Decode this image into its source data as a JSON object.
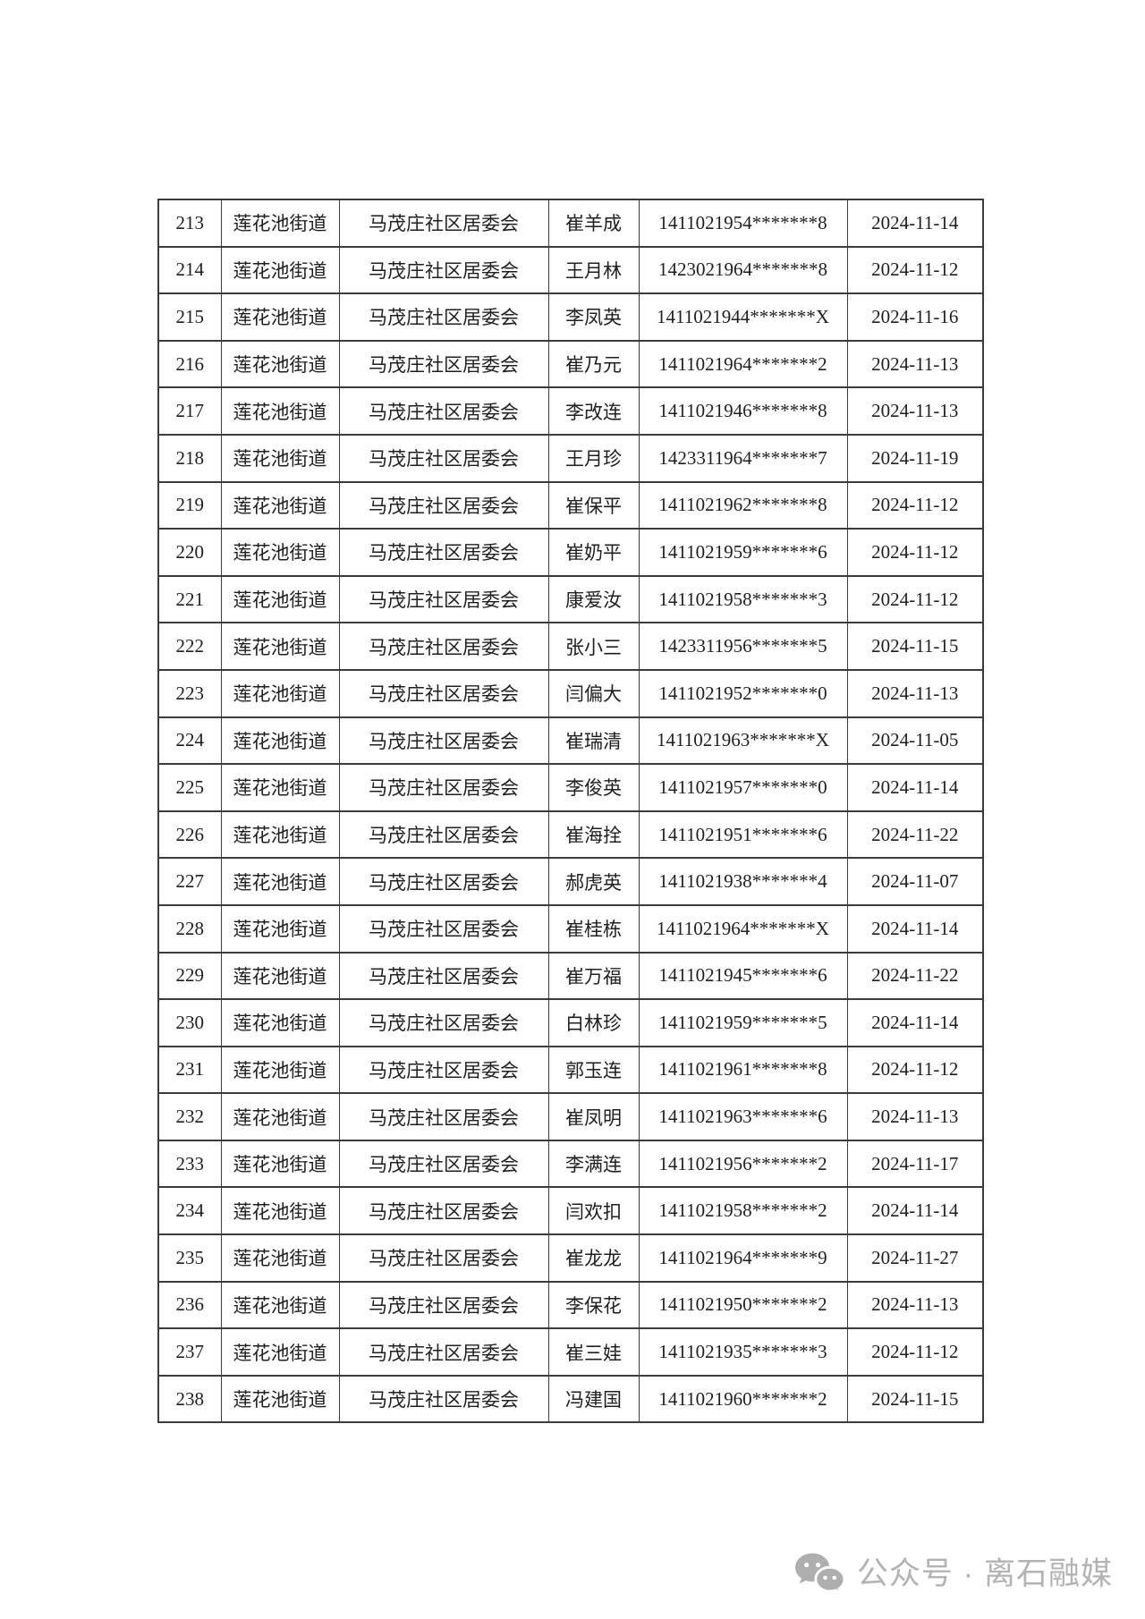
{
  "table": {
    "border_color": "#3c3c3c",
    "columns": [
      "no",
      "street",
      "community",
      "name",
      "id",
      "date"
    ],
    "rows": [
      {
        "no": "213",
        "street": "莲花池街道",
        "community": "马茂庄社区居委会",
        "name": "崔羊成",
        "id": "1411021954*******8",
        "date": "2024-11-14"
      },
      {
        "no": "214",
        "street": "莲花池街道",
        "community": "马茂庄社区居委会",
        "name": "王月林",
        "id": "1423021964*******8",
        "date": "2024-11-12"
      },
      {
        "no": "215",
        "street": "莲花池街道",
        "community": "马茂庄社区居委会",
        "name": "李凤英",
        "id": "1411021944*******X",
        "date": "2024-11-16"
      },
      {
        "no": "216",
        "street": "莲花池街道",
        "community": "马茂庄社区居委会",
        "name": "崔乃元",
        "id": "1411021964*******2",
        "date": "2024-11-13"
      },
      {
        "no": "217",
        "street": "莲花池街道",
        "community": "马茂庄社区居委会",
        "name": "李改连",
        "id": "1411021946*******8",
        "date": "2024-11-13"
      },
      {
        "no": "218",
        "street": "莲花池街道",
        "community": "马茂庄社区居委会",
        "name": "王月珍",
        "id": "1423311964*******7",
        "date": "2024-11-19"
      },
      {
        "no": "219",
        "street": "莲花池街道",
        "community": "马茂庄社区居委会",
        "name": "崔保平",
        "id": "1411021962*******8",
        "date": "2024-11-12"
      },
      {
        "no": "220",
        "street": "莲花池街道",
        "community": "马茂庄社区居委会",
        "name": "崔奶平",
        "id": "1411021959*******6",
        "date": "2024-11-12"
      },
      {
        "no": "221",
        "street": "莲花池街道",
        "community": "马茂庄社区居委会",
        "name": "康爱汝",
        "id": "1411021958*******3",
        "date": "2024-11-12"
      },
      {
        "no": "222",
        "street": "莲花池街道",
        "community": "马茂庄社区居委会",
        "name": "张小三",
        "id": "1423311956*******5",
        "date": "2024-11-15"
      },
      {
        "no": "223",
        "street": "莲花池街道",
        "community": "马茂庄社区居委会",
        "name": "闫偏大",
        "id": "1411021952*******0",
        "date": "2024-11-13"
      },
      {
        "no": "224",
        "street": "莲花池街道",
        "community": "马茂庄社区居委会",
        "name": "崔瑞清",
        "id": "1411021963*******X",
        "date": "2024-11-05"
      },
      {
        "no": "225",
        "street": "莲花池街道",
        "community": "马茂庄社区居委会",
        "name": "李俊英",
        "id": "1411021957*******0",
        "date": "2024-11-14"
      },
      {
        "no": "226",
        "street": "莲花池街道",
        "community": "马茂庄社区居委会",
        "name": "崔海拴",
        "id": "1411021951*******6",
        "date": "2024-11-22"
      },
      {
        "no": "227",
        "street": "莲花池街道",
        "community": "马茂庄社区居委会",
        "name": "郝虎英",
        "id": "1411021938*******4",
        "date": "2024-11-07"
      },
      {
        "no": "228",
        "street": "莲花池街道",
        "community": "马茂庄社区居委会",
        "name": "崔桂栋",
        "id": "1411021964*******X",
        "date": "2024-11-14"
      },
      {
        "no": "229",
        "street": "莲花池街道",
        "community": "马茂庄社区居委会",
        "name": "崔万福",
        "id": "1411021945*******6",
        "date": "2024-11-22"
      },
      {
        "no": "230",
        "street": "莲花池街道",
        "community": "马茂庄社区居委会",
        "name": "白林珍",
        "id": "1411021959*******5",
        "date": "2024-11-14"
      },
      {
        "no": "231",
        "street": "莲花池街道",
        "community": "马茂庄社区居委会",
        "name": "郭玉连",
        "id": "1411021961*******8",
        "date": "2024-11-12"
      },
      {
        "no": "232",
        "street": "莲花池街道",
        "community": "马茂庄社区居委会",
        "name": "崔凤明",
        "id": "1411021963*******6",
        "date": "2024-11-13"
      },
      {
        "no": "233",
        "street": "莲花池街道",
        "community": "马茂庄社区居委会",
        "name": "李满连",
        "id": "1411021956*******2",
        "date": "2024-11-17"
      },
      {
        "no": "234",
        "street": "莲花池街道",
        "community": "马茂庄社区居委会",
        "name": "闫欢扣",
        "id": "1411021958*******2",
        "date": "2024-11-14"
      },
      {
        "no": "235",
        "street": "莲花池街道",
        "community": "马茂庄社区居委会",
        "name": "崔龙龙",
        "id": "1411021964*******9",
        "date": "2024-11-27"
      },
      {
        "no": "236",
        "street": "莲花池街道",
        "community": "马茂庄社区居委会",
        "name": "李保花",
        "id": "1411021950*******2",
        "date": "2024-11-13"
      },
      {
        "no": "237",
        "street": "莲花池街道",
        "community": "马茂庄社区居委会",
        "name": "崔三娃",
        "id": "1411021935*******3",
        "date": "2024-11-12"
      },
      {
        "no": "238",
        "street": "莲花池街道",
        "community": "马茂庄社区居委会",
        "name": "冯建国",
        "id": "1411021960*******2",
        "date": "2024-11-15"
      }
    ]
  },
  "watermark": {
    "icon": "wechat-icon",
    "text": "公众号 · 离石融媒",
    "color": "#b3b3b3"
  }
}
